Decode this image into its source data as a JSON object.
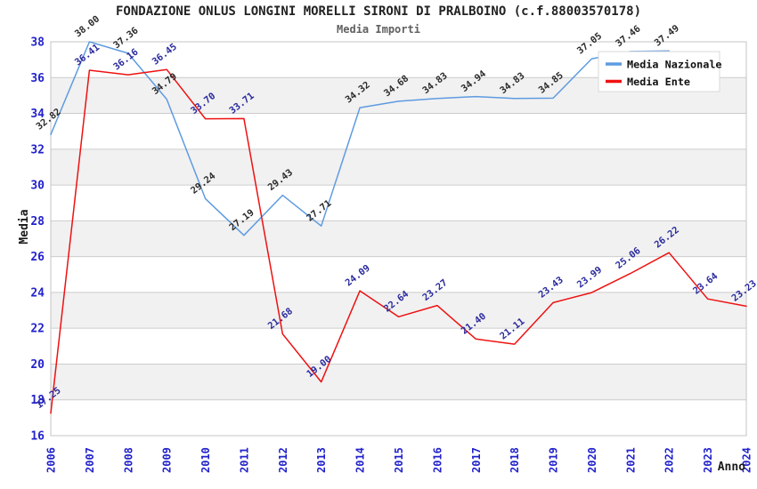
{
  "title": "FONDAZIONE ONLUS LONGINI MORELLI SIRONI DI PRALBOINO (c.f.88003570178)",
  "subtitle": "Media Importi",
  "colors": {
    "tick_label": "#2222cc",
    "grid_line": "#cccccc",
    "band_gray": "#f1f1f1",
    "plot_border": "#c4c4c4",
    "nazionale_line": "#5e9be0",
    "ente_line": "#ee1111",
    "nazionale_value_label": "#2b2b2b",
    "ente_value_label": "#2a2a9e"
  },
  "chart_data": {
    "type": "line",
    "title": "FONDAZIONE ONLUS LONGINI MORELLI SIRONI DI PRALBOINO (c.f.88003570178)",
    "subtitle": "Media Importi",
    "xlabel": "Anno",
    "ylabel": "Media",
    "ylim": [
      16,
      38
    ],
    "ytick_step": 2,
    "grid": "horizontal-stripes",
    "legend_position": "top-right",
    "x": [
      2006,
      2007,
      2008,
      2009,
      2010,
      2011,
      2012,
      2013,
      2014,
      2015,
      2016,
      2017,
      2018,
      2019,
      2020,
      2021,
      2022,
      2023,
      2024
    ],
    "series": [
      {
        "name": "Media Nazionale",
        "color": "#5e9be0",
        "label_color": "#2b2b2b",
        "values": [
          32.82,
          38.0,
          37.36,
          34.79,
          29.24,
          27.19,
          29.43,
          27.71,
          34.32,
          34.68,
          34.83,
          34.94,
          34.83,
          34.85,
          37.05,
          37.46,
          37.49,
          null,
          null
        ]
      },
      {
        "name": "Media Ente",
        "color": "#ee1111",
        "label_color": "#2a2a9e",
        "values": [
          17.25,
          36.41,
          36.16,
          36.45,
          33.7,
          33.71,
          21.68,
          19.0,
          24.09,
          22.64,
          23.27,
          21.4,
          21.11,
          23.43,
          23.99,
          25.06,
          26.22,
          23.64,
          23.23
        ]
      }
    ]
  }
}
